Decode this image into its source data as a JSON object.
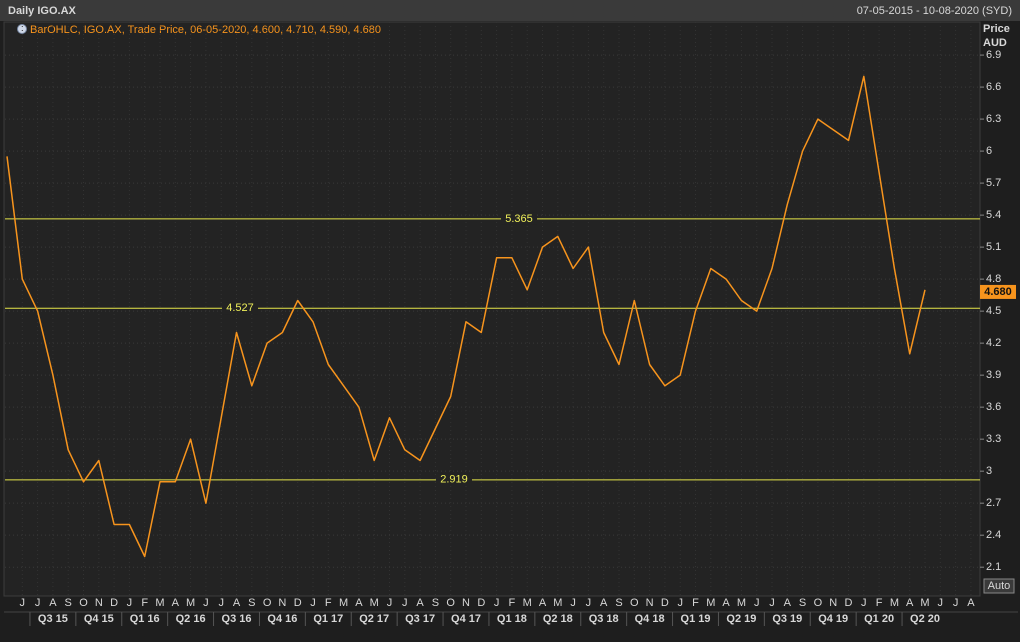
{
  "chart_data": {
    "type": "line",
    "title": "Daily IGO.AX",
    "date_range": "07-05-2015 - 10-08-2020 (SYD)",
    "legend_text": "BarOHLC, IGO.AX, Trade Price, 06-05-2020, 4.600, 4.710, 4.590, 4.680",
    "y_label": "Price",
    "y_unit": "AUD",
    "scale_button": "Auto",
    "categories": [
      null,
      "J",
      "J",
      "A",
      "S",
      "O",
      "N",
      "D",
      "J",
      "F",
      "M",
      "A",
      "M",
      "J",
      "J",
      "A",
      "S",
      "O",
      "N",
      "D",
      "J",
      "F",
      "M",
      "A",
      "M",
      "J",
      "J",
      "A",
      "S",
      "O",
      "N",
      "D",
      "J",
      "F",
      "M",
      "A",
      "M",
      "J",
      "J",
      "A",
      "S",
      "O",
      "N",
      "D",
      "J",
      "F",
      "M",
      "A",
      "M",
      "J",
      "J",
      "A",
      "S",
      "O",
      "N",
      "D",
      "J",
      "F",
      "M",
      "A",
      "M",
      "J",
      "J",
      "A"
    ],
    "quarters": [
      "Q3 15",
      "Q4 15",
      "Q1 16",
      "Q2 16",
      "Q3 16",
      "Q4 16",
      "Q1 17",
      "Q2 17",
      "Q3 17",
      "Q4 17",
      "Q1 18",
      "Q2 18",
      "Q3 18",
      "Q4 18",
      "Q1 19",
      "Q2 19",
      "Q3 19",
      "Q4 19",
      "Q1 20",
      "Q2 20"
    ],
    "series": [
      {
        "name": "IGO.AX",
        "color": "#f7941d",
        "values": [
          5.95,
          4.8,
          4.5,
          3.9,
          3.2,
          2.9,
          3.1,
          2.5,
          2.5,
          2.2,
          2.9,
          2.9,
          3.3,
          2.7,
          3.5,
          4.3,
          3.8,
          4.2,
          4.3,
          4.6,
          4.4,
          4.0,
          3.8,
          3.6,
          3.1,
          3.5,
          3.2,
          3.1,
          3.4,
          3.7,
          4.4,
          4.3,
          5.0,
          5.0,
          4.7,
          5.1,
          5.2,
          4.9,
          5.1,
          4.3,
          4.0,
          4.6,
          4.0,
          3.8,
          3.9,
          4.5,
          4.9,
          4.8,
          4.6,
          4.5,
          4.9,
          5.5,
          6.0,
          6.3,
          6.2,
          6.1,
          6.7,
          5.8,
          4.9,
          4.1,
          4.7,
          null,
          null,
          null
        ]
      }
    ],
    "levels": [
      5.365,
      4.527,
      2.919
    ],
    "last_price": {
      "value": 4.68,
      "label": "4.680"
    },
    "ylim": [
      1.83,
      7.21
    ],
    "yticks": [
      2.1,
      2.4,
      2.7,
      3,
      3.3,
      3.6,
      3.9,
      4.2,
      4.5,
      4.8,
      5.1,
      5.4,
      5.7,
      6,
      6.3,
      6.6,
      6.9
    ],
    "grid": true
  }
}
